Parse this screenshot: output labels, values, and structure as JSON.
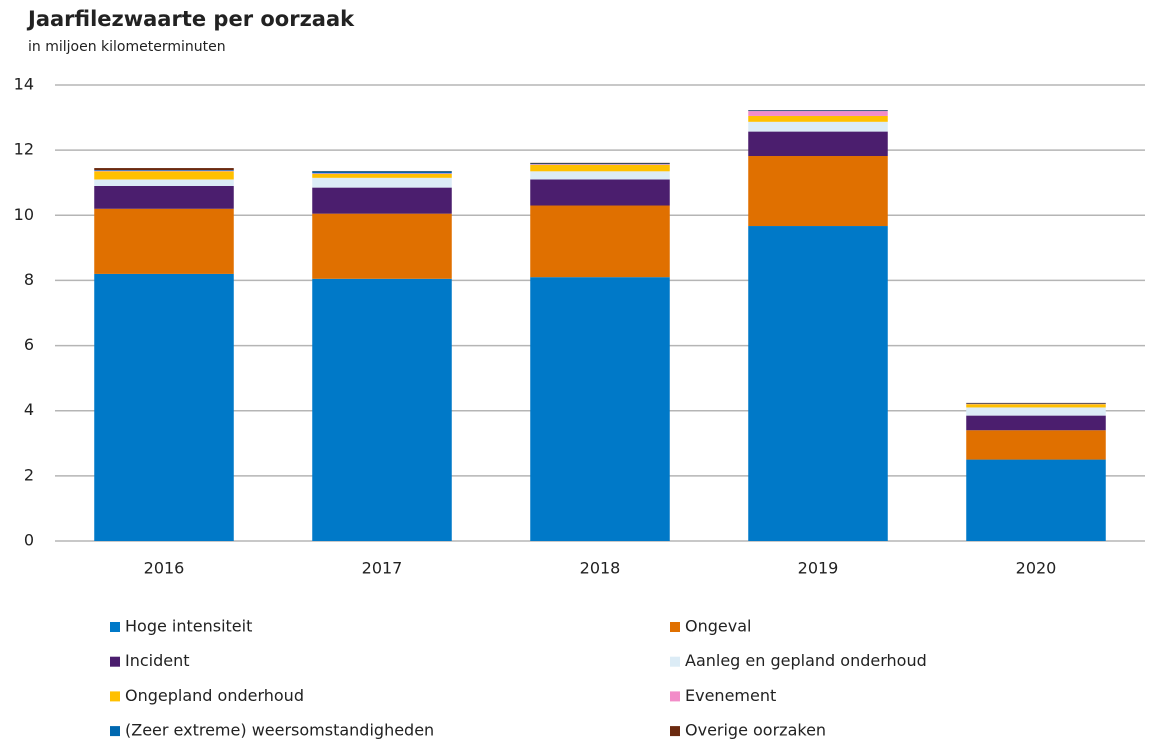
{
  "chart_data": {
    "type": "stacked_bar",
    "title": "Jaarfilezwaarte per oorzaak",
    "subtitle": "in miljoen kilometerminuten",
    "categories": [
      "2016",
      "2017",
      "2018",
      "2019",
      "2020"
    ],
    "series": [
      {
        "name": "Hoge intensiteit",
        "color": "#0079c8",
        "values": [
          8.2,
          8.05,
          8.1,
          9.67,
          2.5
        ]
      },
      {
        "name": "Ongeval",
        "color": "#e07000",
        "values": [
          2.0,
          2.0,
          2.2,
          2.15,
          0.9
        ]
      },
      {
        "name": "Incident",
        "color": "#4b1e6e",
        "values": [
          0.7,
          0.8,
          0.8,
          0.75,
          0.45
        ]
      },
      {
        "name": "Aanleg en gepland onderhoud",
        "color": "#dcecf6",
        "values": [
          0.2,
          0.3,
          0.25,
          0.3,
          0.25
        ]
      },
      {
        "name": "Ongepland onderhoud",
        "color": "#ffc000",
        "values": [
          0.25,
          0.12,
          0.2,
          0.18,
          0.1
        ]
      },
      {
        "name": "Evenement",
        "color": "#f28cc8",
        "values": [
          0.02,
          0.02,
          0.02,
          0.15,
          0.01
        ]
      },
      {
        "name": "(Zeer extreme) weersomstandigheden",
        "color": "#0068b0",
        "values": [
          0.02,
          0.06,
          0.02,
          0.02,
          0.01
        ]
      },
      {
        "name": "Overige oorzaken",
        "color": "#6b2a10",
        "values": [
          0.06,
          0.01,
          0.02,
          0.01,
          0.02
        ]
      }
    ],
    "ylim": [
      0,
      14
    ],
    "yticks": [
      0,
      2,
      4,
      6,
      8,
      10,
      12,
      14
    ],
    "grid": true
  }
}
